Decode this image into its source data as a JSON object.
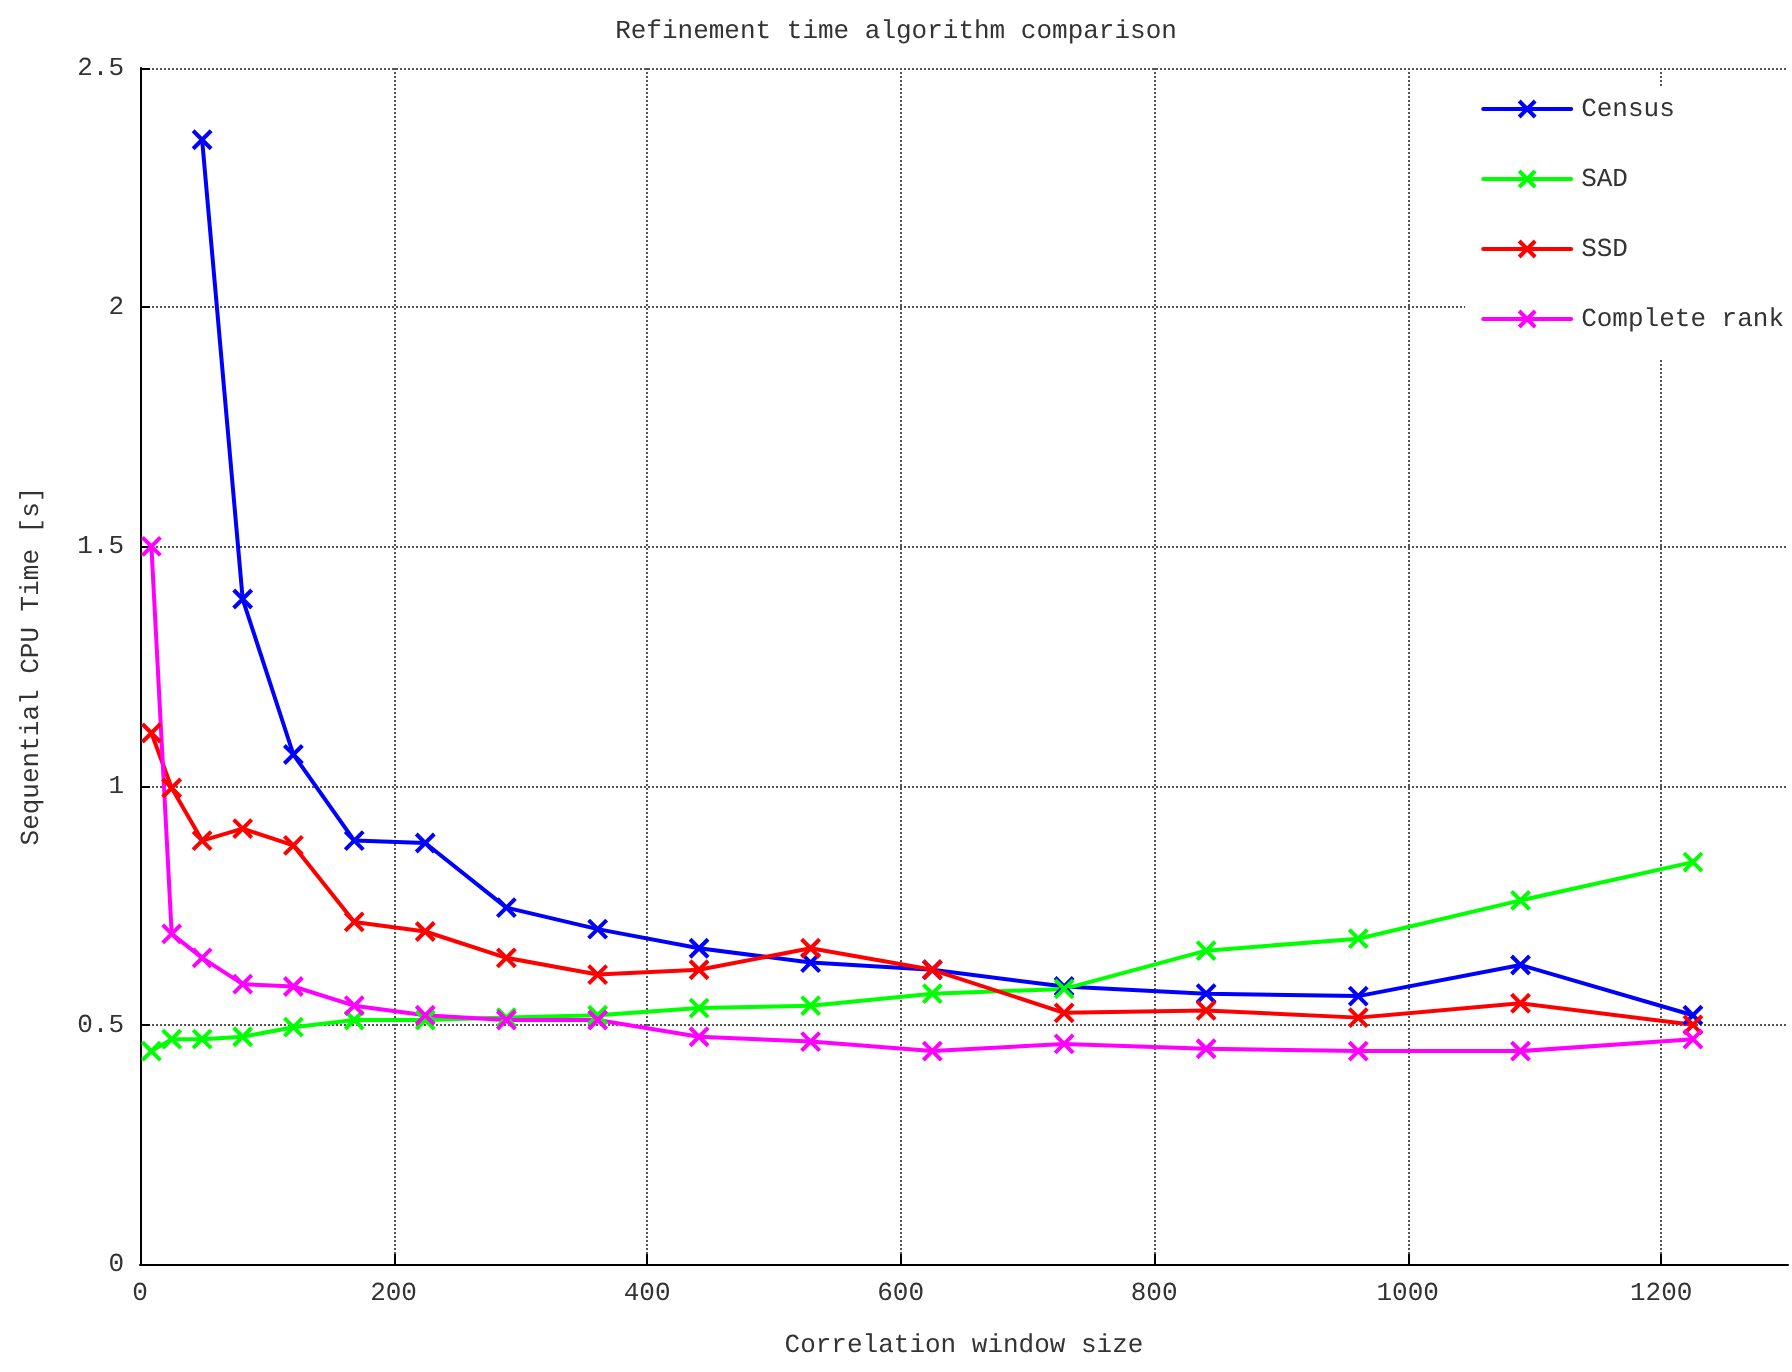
{
  "chart_data": {
    "type": "line",
    "title": "Refinement time algorithm comparison",
    "xlabel": "Correlation window size",
    "ylabel": "Sequential CPU Time [s]",
    "x": [
      9,
      25,
      49,
      81,
      121,
      169,
      225,
      289,
      361,
      441,
      529,
      625,
      729,
      841,
      961,
      1089,
      1225
    ],
    "series": [
      {
        "name": "Census",
        "color": "#0000ff",
        "values": [
          null,
          null,
          2.35,
          1.39,
          1.065,
          0.885,
          0.88,
          0.745,
          0.7,
          0.66,
          0.63,
          0.615,
          0.58,
          0.565,
          0.56,
          0.625,
          0.52
        ]
      },
      {
        "name": "SAD",
        "color": "#00ff00",
        "values": [
          0.445,
          0.47,
          0.47,
          0.475,
          0.495,
          0.51,
          0.51,
          0.515,
          0.52,
          0.535,
          0.54,
          0.565,
          0.575,
          0.655,
          0.68,
          0.76,
          0.84
        ]
      },
      {
        "name": "SSD",
        "color": "#ff0000",
        "values": [
          1.11,
          0.995,
          0.885,
          0.91,
          0.875,
          0.715,
          0.695,
          0.64,
          0.605,
          0.615,
          0.66,
          0.615,
          0.525,
          0.53,
          0.515,
          0.545,
          0.5
        ]
      },
      {
        "name": "Complete rank",
        "color": "#ff00ff",
        "values": [
          1.5,
          0.69,
          0.64,
          0.585,
          0.58,
          0.54,
          0.52,
          0.51,
          0.51,
          0.475,
          0.465,
          0.445,
          0.46,
          0.45,
          0.445,
          0.445,
          0.47
        ]
      }
    ],
    "xlim": [
      0,
      1300
    ],
    "xticks": [
      0,
      200,
      400,
      600,
      800,
      1000,
      1200
    ],
    "ylim": [
      0,
      2.5
    ],
    "yticks": [
      0,
      0.5,
      1,
      1.5,
      2,
      2.5
    ],
    "grid": true,
    "legend": "top right",
    "marker": "cross",
    "line_style": "solid"
  }
}
